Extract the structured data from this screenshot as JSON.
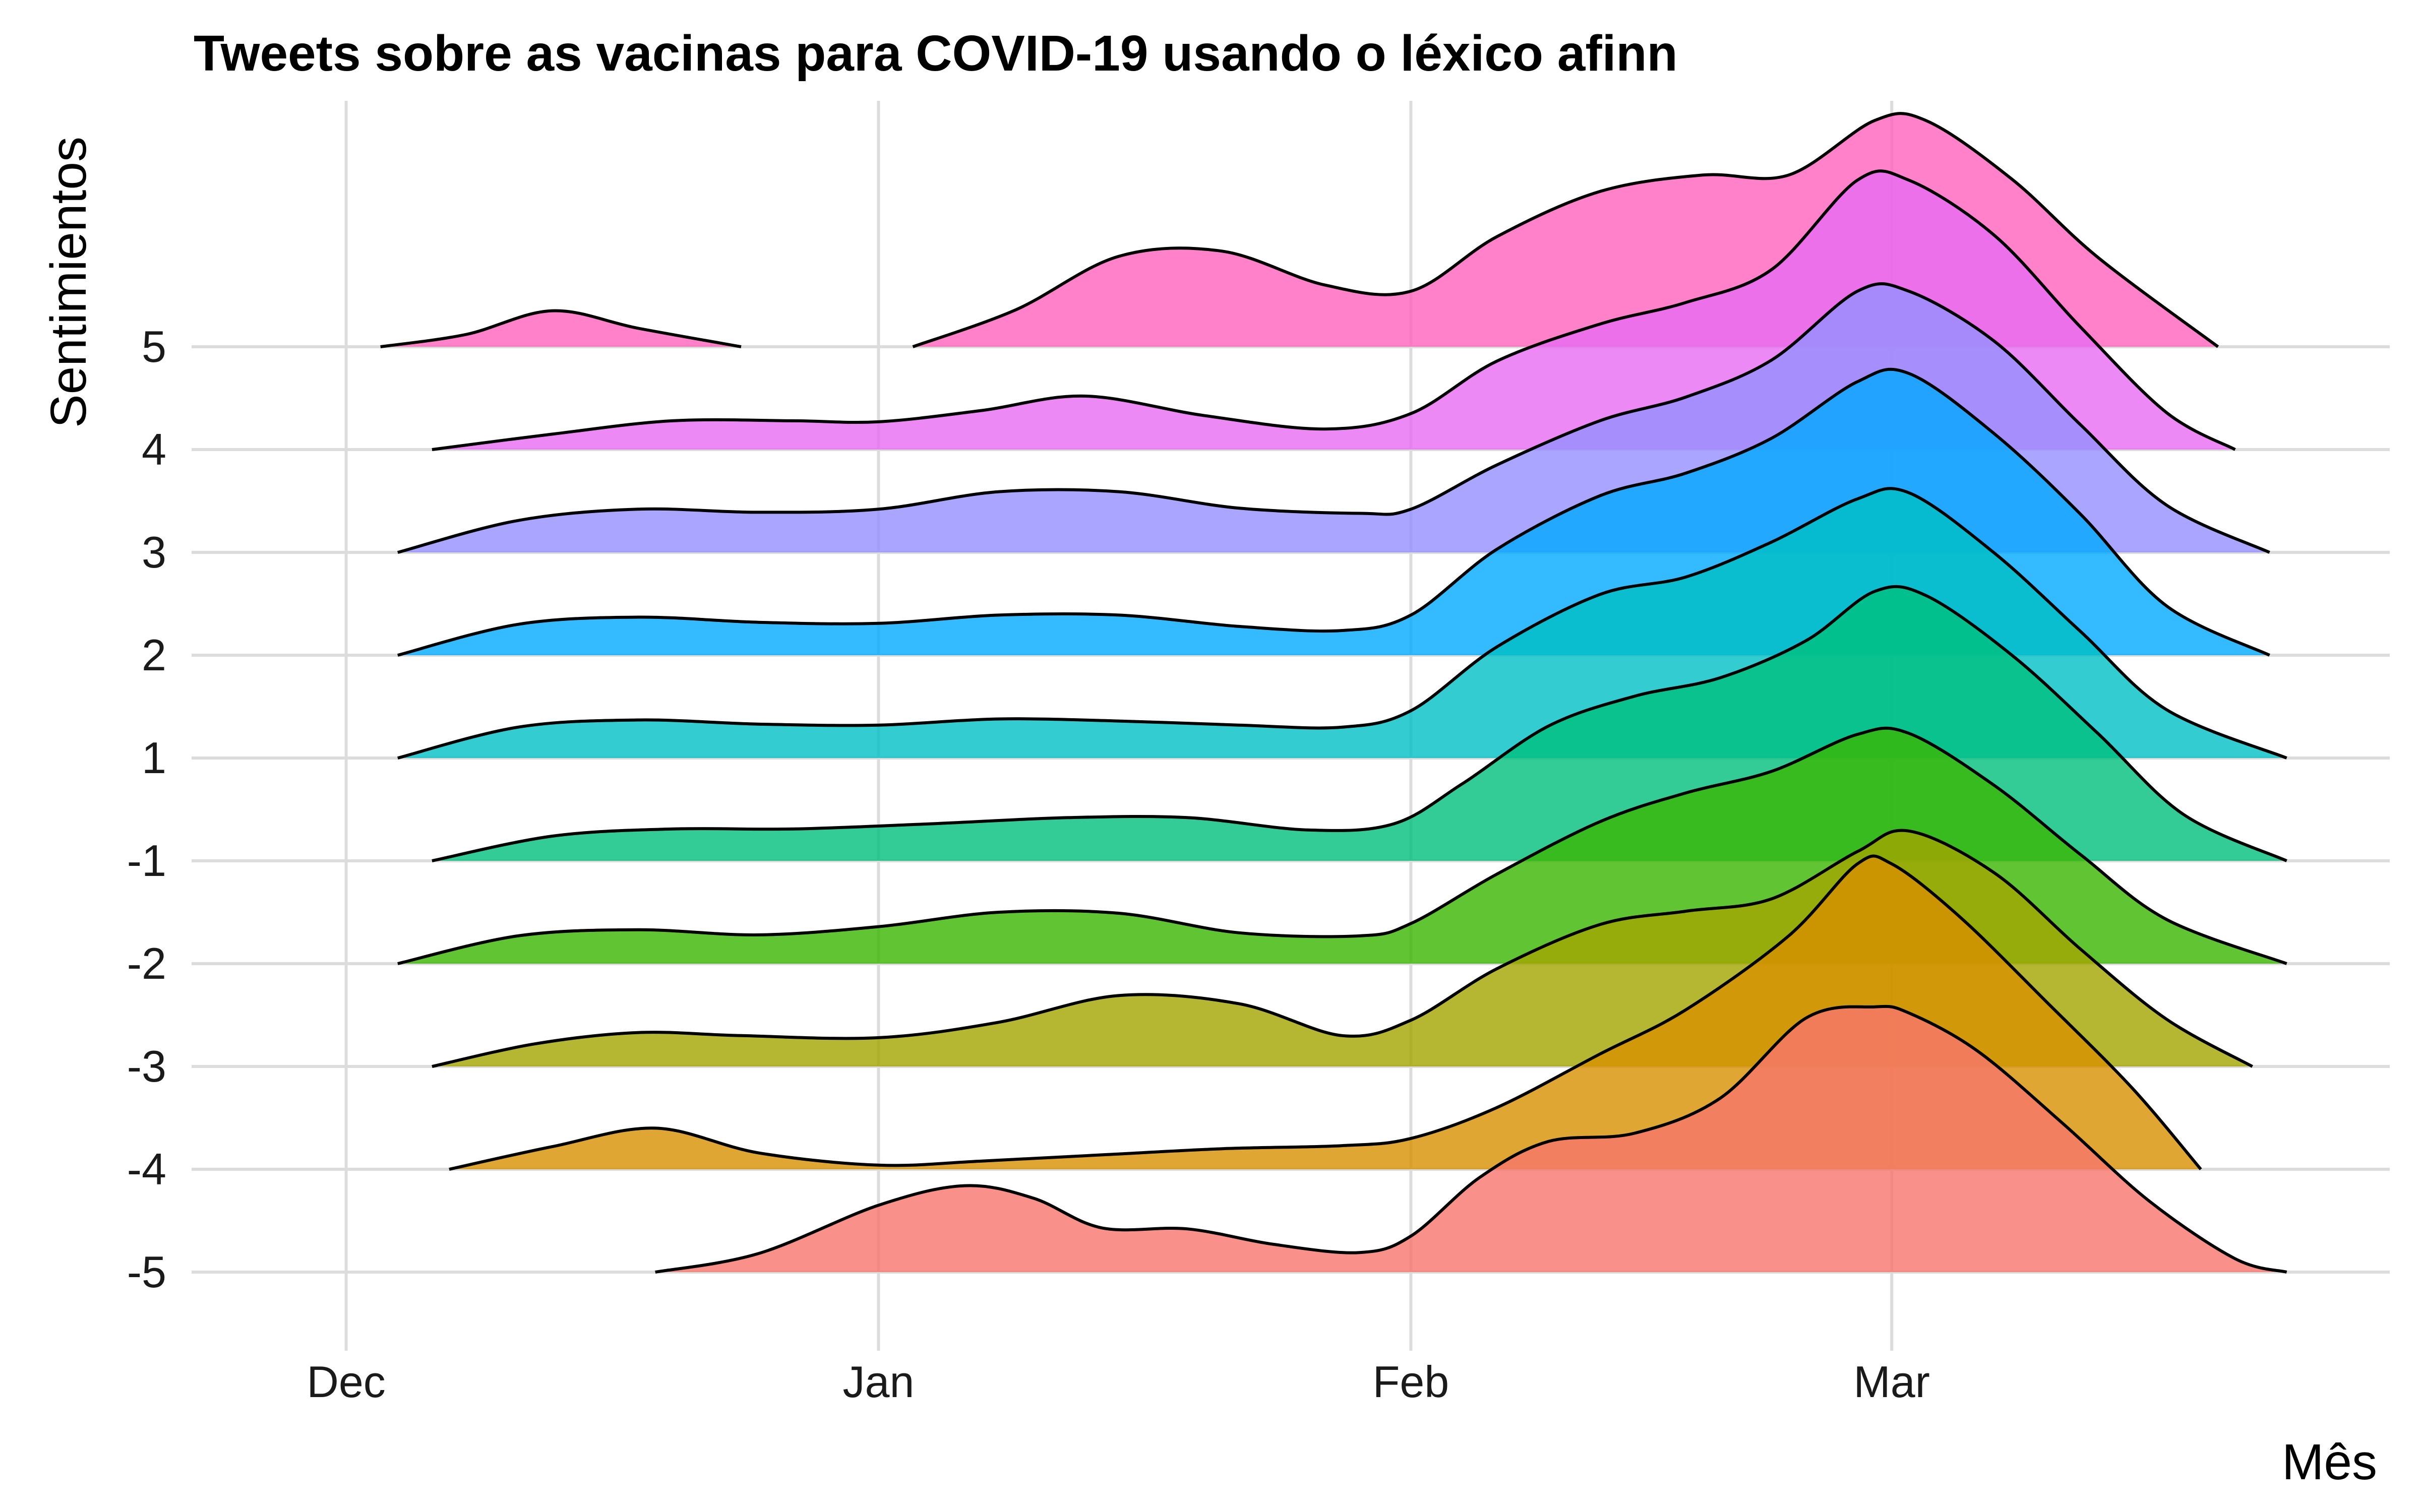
{
  "chart_data": {
    "type": "ridgeline",
    "title": "Tweets sobre as vacinas para COVID-19 usando o léxico afinn",
    "xlabel": "Mês",
    "ylabel": "Sentimientos",
    "x_ticks": [
      "Dec",
      "Jan",
      "Feb",
      "Mar"
    ],
    "x_tick_values": [
      "2020-12-01",
      "2021-01-01",
      "2021-02-01",
      "2021-03-01"
    ],
    "xlim": [
      "2020-11-22",
      "2021-03-30"
    ],
    "grid": true,
    "legend": "none",
    "density_scale": "relative ridge height (1 = one row spacing)",
    "series": [
      {
        "name": "-5",
        "color": "#F8766D",
        "x": [
          "2020-12-19",
          "2020-12-25",
          "2021-01-01",
          "2021-01-06",
          "2021-01-10",
          "2021-01-14",
          "2021-01-19",
          "2021-01-24",
          "2021-01-29",
          "2021-02-01",
          "2021-02-05",
          "2021-02-09",
          "2021-02-14",
          "2021-02-19",
          "2021-02-24",
          "2021-02-28",
          "2021-03-02",
          "2021-03-06",
          "2021-03-11",
          "2021-03-16",
          "2021-03-21",
          "2021-03-24"
        ],
        "y": [
          0.0,
          0.18,
          0.65,
          0.84,
          0.72,
          0.43,
          0.42,
          0.27,
          0.19,
          0.35,
          0.92,
          1.27,
          1.35,
          1.69,
          2.47,
          2.58,
          2.52,
          2.15,
          1.44,
          0.69,
          0.13,
          0.0
        ]
      },
      {
        "name": "-4",
        "color": "#D89000",
        "x": [
          "2020-12-07",
          "2020-12-13",
          "2020-12-19",
          "2020-12-25",
          "2021-01-01",
          "2021-01-07",
          "2021-01-14",
          "2021-01-21",
          "2021-01-28",
          "2021-02-01",
          "2021-02-06",
          "2021-02-12",
          "2021-02-17",
          "2021-02-23",
          "2021-02-27",
          "2021-03-01",
          "2021-03-05",
          "2021-03-10",
          "2021-03-15",
          "2021-03-19"
        ],
        "y": [
          0.0,
          0.22,
          0.4,
          0.16,
          0.04,
          0.08,
          0.14,
          0.2,
          0.23,
          0.3,
          0.6,
          1.12,
          1.55,
          2.27,
          2.97,
          2.97,
          2.45,
          1.63,
          0.79,
          0.0
        ]
      },
      {
        "name": "-3",
        "color": "#A3A500",
        "x": [
          "2020-12-06",
          "2020-12-12",
          "2020-12-18",
          "2020-12-24",
          "2021-01-01",
          "2021-01-08",
          "2021-01-15",
          "2021-01-22",
          "2021-01-28",
          "2021-02-01",
          "2021-02-06",
          "2021-02-12",
          "2021-02-17",
          "2021-02-22",
          "2021-02-27",
          "2021-03-02",
          "2021-03-07",
          "2021-03-12",
          "2021-03-17",
          "2021-03-22"
        ],
        "y": [
          0.0,
          0.22,
          0.33,
          0.3,
          0.28,
          0.43,
          0.69,
          0.61,
          0.3,
          0.45,
          0.95,
          1.38,
          1.51,
          1.63,
          2.09,
          2.29,
          1.88,
          1.14,
          0.46,
          0.0
        ]
      },
      {
        "name": "-2",
        "color": "#39B600",
        "x": [
          "2020-12-04",
          "2020-12-11",
          "2020-12-18",
          "2020-12-25",
          "2021-01-01",
          "2021-01-08",
          "2021-01-15",
          "2021-01-22",
          "2021-01-29",
          "2021-02-01",
          "2021-02-06",
          "2021-02-12",
          "2021-02-17",
          "2021-02-22",
          "2021-02-27",
          "2021-03-02",
          "2021-03-07",
          "2021-03-12",
          "2021-03-17",
          "2021-03-24"
        ],
        "y": [
          0.0,
          0.27,
          0.33,
          0.28,
          0.36,
          0.5,
          0.49,
          0.3,
          0.27,
          0.39,
          0.87,
          1.38,
          1.66,
          1.87,
          2.23,
          2.24,
          1.73,
          1.06,
          0.43,
          0.0
        ]
      },
      {
        "name": "-1",
        "color": "#00BF7D",
        "x": [
          "2020-12-06",
          "2020-12-13",
          "2020-12-20",
          "2020-12-27",
          "2021-01-04",
          "2021-01-12",
          "2021-01-19",
          "2021-01-26",
          "2021-01-31",
          "2021-02-04",
          "2021-02-09",
          "2021-02-14",
          "2021-02-19",
          "2021-02-24",
          "2021-02-28",
          "2021-03-03",
          "2021-03-08",
          "2021-03-13",
          "2021-03-18",
          "2021-03-24"
        ],
        "y": [
          0.0,
          0.24,
          0.31,
          0.31,
          0.36,
          0.42,
          0.42,
          0.3,
          0.36,
          0.75,
          1.31,
          1.6,
          1.78,
          2.14,
          2.62,
          2.58,
          2.0,
          1.24,
          0.45,
          0.0
        ]
      },
      {
        "name": "1",
        "color": "#00BFC4",
        "x": [
          "2020-12-04",
          "2020-12-11",
          "2020-12-18",
          "2020-12-25",
          "2021-01-01",
          "2021-01-08",
          "2021-01-15",
          "2021-01-22",
          "2021-01-28",
          "2021-02-01",
          "2021-02-06",
          "2021-02-12",
          "2021-02-17",
          "2021-02-22",
          "2021-02-27",
          "2021-03-02",
          "2021-03-07",
          "2021-03-12",
          "2021-03-17",
          "2021-03-24"
        ],
        "y": [
          0.0,
          0.3,
          0.37,
          0.33,
          0.32,
          0.38,
          0.36,
          0.32,
          0.3,
          0.46,
          1.08,
          1.59,
          1.76,
          2.1,
          2.52,
          2.58,
          1.99,
          1.23,
          0.47,
          0.0
        ]
      },
      {
        "name": "2",
        "color": "#00A9FF",
        "x": [
          "2020-12-04",
          "2020-12-11",
          "2020-12-18",
          "2020-12-25",
          "2021-01-01",
          "2021-01-08",
          "2021-01-15",
          "2021-01-22",
          "2021-01-28",
          "2021-02-01",
          "2021-02-06",
          "2021-02-12",
          "2021-02-17",
          "2021-02-22",
          "2021-02-27",
          "2021-03-02",
          "2021-03-07",
          "2021-03-12",
          "2021-03-17",
          "2021-03-23"
        ],
        "y": [
          0.0,
          0.3,
          0.37,
          0.32,
          0.31,
          0.39,
          0.39,
          0.28,
          0.24,
          0.39,
          1.03,
          1.55,
          1.77,
          2.11,
          2.66,
          2.74,
          2.15,
          1.37,
          0.48,
          0.0
        ]
      },
      {
        "name": "3",
        "color": "#9590FF",
        "x": [
          "2020-12-04",
          "2020-12-11",
          "2020-12-18",
          "2020-12-25",
          "2021-01-01",
          "2021-01-08",
          "2021-01-15",
          "2021-01-22",
          "2021-01-29",
          "2021-02-01",
          "2021-02-06",
          "2021-02-12",
          "2021-02-17",
          "2021-02-22",
          "2021-02-27",
          "2021-03-02",
          "2021-03-07",
          "2021-03-12",
          "2021-03-17",
          "2021-03-23"
        ],
        "y": [
          0.0,
          0.31,
          0.42,
          0.39,
          0.42,
          0.59,
          0.59,
          0.43,
          0.38,
          0.42,
          0.85,
          1.28,
          1.51,
          1.87,
          2.54,
          2.54,
          2.05,
          1.24,
          0.46,
          0.0
        ]
      },
      {
        "name": "4",
        "color": "#E76BF3",
        "x": [
          "2020-12-06",
          "2020-12-13",
          "2020-12-20",
          "2020-12-27",
          "2021-01-01",
          "2021-01-07",
          "2021-01-13",
          "2021-01-20",
          "2021-01-27",
          "2021-02-01",
          "2021-02-06",
          "2021-02-12",
          "2021-02-17",
          "2021-02-22",
          "2021-02-27",
          "2021-03-02",
          "2021-03-07",
          "2021-03-12",
          "2021-03-17",
          "2021-03-21"
        ],
        "y": [
          0.0,
          0.15,
          0.28,
          0.28,
          0.27,
          0.38,
          0.52,
          0.33,
          0.2,
          0.35,
          0.86,
          1.22,
          1.43,
          1.75,
          2.62,
          2.62,
          2.08,
          1.19,
          0.36,
          0.0
        ]
      },
      {
        "name": "5",
        "color": "#FF62BC",
        "x": [
          "2020-12-03",
          "2020-12-08",
          "2020-12-13",
          "2020-12-18",
          "2020-12-24",
          "2021-01-03",
          "2021-01-09",
          "2021-01-15",
          "2021-01-21",
          "2021-01-27",
          "2021-02-01",
          "2021-02-06",
          "2021-02-12",
          "2021-02-18",
          "2021-02-23",
          "2021-02-28",
          "2021-03-03",
          "2021-03-08",
          "2021-03-13",
          "2021-03-20"
        ],
        "y": [
          0.0,
          0.12,
          0.35,
          0.18,
          0.0,
          0.0,
          0.36,
          0.88,
          0.93,
          0.6,
          0.54,
          1.07,
          1.51,
          1.67,
          1.67,
          2.2,
          2.2,
          1.63,
          0.87,
          0.0
        ]
      }
    ]
  }
}
